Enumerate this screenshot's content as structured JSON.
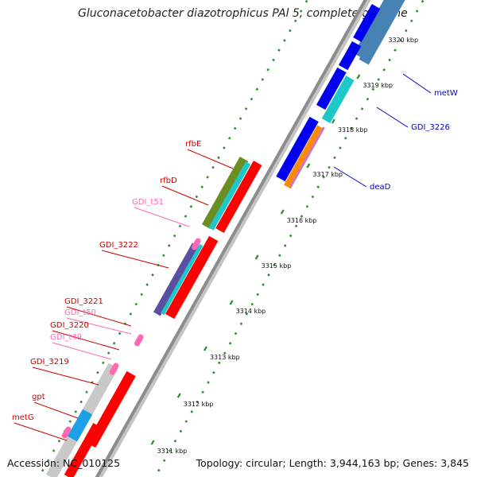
{
  "map": {
    "title": "Gluconacetobacter diazotrophicus PAl 5, complete genome",
    "accession": "Accession: NC_010125",
    "summary": "Topology: circular; Length: 3,944,163 bp; Genes: 3,845",
    "colors": {
      "background": "#ffffff",
      "backbone": "#8c8c8c",
      "ticks": "#2e8b2e",
      "cds": "#ff0000",
      "trna": "#ff69b4",
      "forward_label": "#cc0000",
      "reverse_label": "#0000cc",
      "reverse_cds": "#0000ee",
      "cyan_feature": "#1ec8c8",
      "olive_feature": "#6b8e23",
      "orange_feature": "#ff8c00",
      "grey_feature": "#c8c8c8",
      "purple_feature": "#5a4fa0",
      "steel_feature": "#4682b4"
    },
    "scale_labels": [
      "3311 kbp",
      "3312 kbp",
      "3313 kbp",
      "3314 kbp",
      "3315 kbp",
      "3316 kbp",
      "3317 kbp",
      "3318 kbp",
      "3319 kbp",
      "3320 kbp"
    ],
    "forward_genes": [
      "rfbE",
      "rfbD",
      "GDI_t51",
      "GDI_3222",
      "GDI_3221",
      "GDI_t50",
      "GDI_3220",
      "GDI_t49",
      "GDI_3219",
      "gpt",
      "metG"
    ],
    "reverse_genes": [
      "metW",
      "GDI_3226",
      "deaD"
    ]
  }
}
